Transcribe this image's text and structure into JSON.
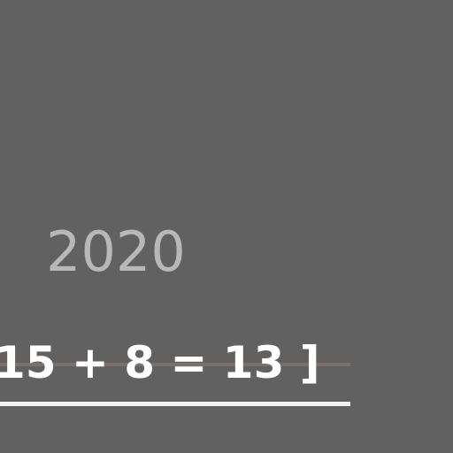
{
  "background_color": "#616161",
  "year_label": "2020",
  "equation_text": "15 + 8 = 13 ]",
  "colors": {
    "year_text": "#b8b8b8",
    "equation_text": "#ffffff",
    "strike_line": "#7a716c",
    "underline": "#f2f2f2"
  }
}
